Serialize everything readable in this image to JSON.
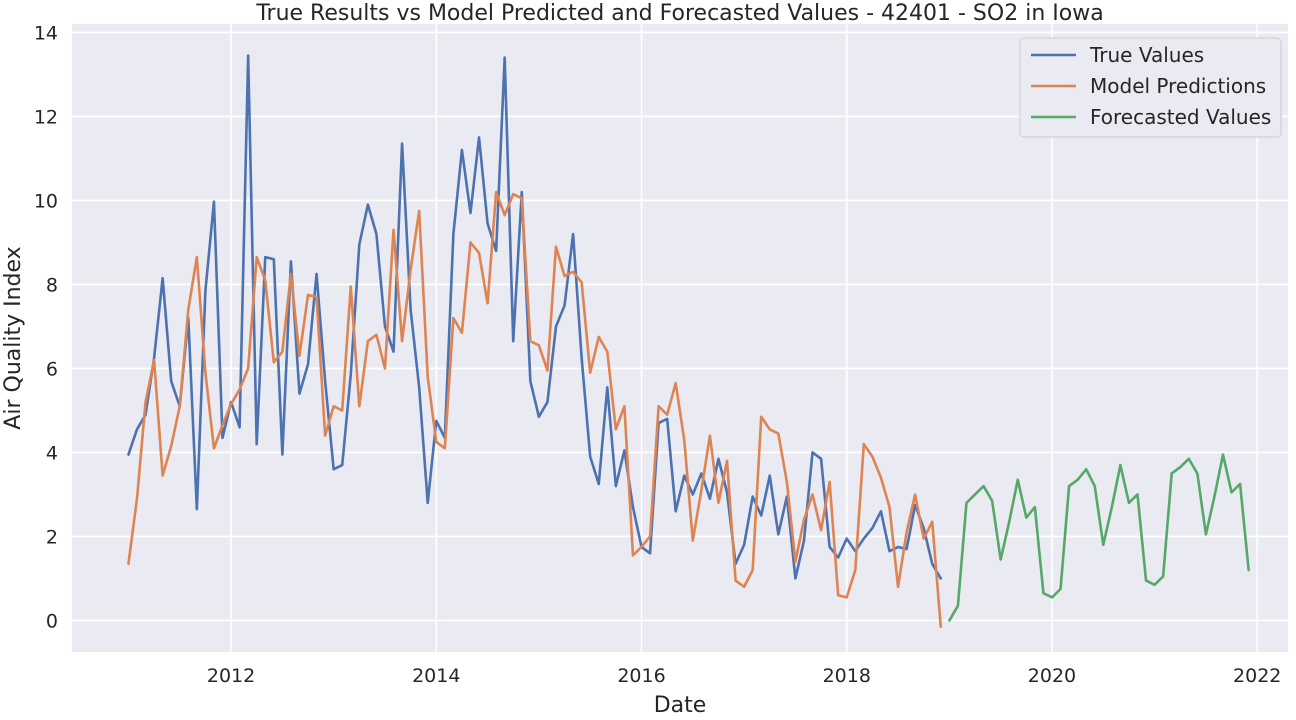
{
  "chart_data": {
    "type": "line",
    "title": "True Results vs Model Predicted and Forecasted Values - 42401 - SO2 in Iowa",
    "xlabel": "Date",
    "ylabel": "Air Quality Index",
    "xlim": [
      2010.45,
      2022.3
    ],
    "ylim": [
      -0.75,
      14.2
    ],
    "x_ticks": [
      2012,
      2014,
      2016,
      2018,
      2020,
      2022
    ],
    "y_ticks": [
      0,
      2,
      4,
      6,
      8,
      10,
      12,
      14
    ],
    "grid": true,
    "legend_position": "top-right",
    "colors": {
      "background": "#EAEAF2",
      "grid": "#FFFFFF"
    },
    "series": [
      {
        "name": "True Values",
        "color": "#4C72B0",
        "x_start": 2011.0,
        "x_step": 0.08333,
        "values": [
          3.95,
          4.55,
          4.9,
          6.25,
          8.15,
          5.7,
          5.1,
          7.2,
          2.65,
          7.85,
          9.97,
          4.35,
          5.2,
          4.6,
          13.45,
          4.2,
          8.65,
          8.6,
          3.95,
          8.55,
          5.4,
          6.1,
          8.25,
          5.7,
          3.6,
          3.7,
          5.85,
          8.95,
          9.9,
          9.2,
          7.0,
          6.4,
          11.35,
          7.4,
          5.55,
          2.8,
          4.75,
          4.35,
          9.2,
          11.2,
          9.7,
          11.5,
          9.45,
          8.8,
          13.4,
          6.65,
          10.2,
          5.7,
          4.85,
          5.2,
          7.0,
          7.5,
          9.2,
          6.25,
          3.9,
          3.25,
          5.55,
          3.2,
          4.05,
          2.7,
          1.75,
          1.6,
          4.7,
          4.8,
          2.6,
          3.45,
          3.0,
          3.5,
          2.9,
          3.85,
          3.05,
          1.35,
          1.8,
          2.95,
          2.5,
          3.45,
          2.05,
          2.95,
          1.0,
          1.9,
          4.0,
          3.85,
          1.75,
          1.5,
          1.95,
          1.65,
          1.95,
          2.2,
          2.6,
          1.65,
          1.75,
          1.7,
          2.75,
          2.2,
          1.35,
          1.0
        ]
      },
      {
        "name": "Model Predictions",
        "color": "#DD8452",
        "x_start": 2011.0,
        "x_step": 0.08333,
        "values": [
          1.35,
          2.9,
          5.2,
          6.2,
          3.45,
          4.15,
          5.1,
          7.4,
          8.65,
          5.9,
          4.1,
          4.65,
          5.15,
          5.5,
          6.0,
          8.65,
          8.1,
          6.15,
          6.4,
          8.25,
          6.3,
          7.75,
          7.7,
          4.4,
          5.1,
          5.0,
          7.95,
          5.1,
          6.65,
          6.8,
          6.0,
          9.3,
          6.65,
          8.35,
          9.75,
          5.8,
          4.25,
          4.1,
          7.2,
          6.85,
          9.0,
          8.75,
          7.55,
          10.2,
          9.65,
          10.15,
          10.05,
          6.65,
          6.55,
          5.95,
          8.9,
          8.2,
          8.3,
          8.05,
          5.9,
          6.75,
          6.4,
          4.55,
          5.1,
          1.55,
          1.75,
          2.0,
          5.1,
          4.9,
          5.65,
          4.3,
          1.9,
          3.1,
          4.4,
          2.8,
          3.8,
          0.95,
          0.8,
          1.2,
          4.85,
          4.55,
          4.45,
          3.3,
          1.4,
          2.4,
          3.0,
          2.15,
          3.3,
          0.6,
          0.55,
          1.2,
          4.2,
          3.9,
          3.4,
          2.7,
          0.8,
          2.1,
          3.0,
          1.95,
          2.35,
          -0.15
        ]
      },
      {
        "name": "Forecasted Values",
        "color": "#55A868",
        "x_start": 2019.0,
        "x_step": 0.08333,
        "values": [
          0.0,
          0.35,
          2.8,
          3.0,
          3.2,
          2.85,
          1.45,
          2.35,
          3.35,
          2.45,
          2.7,
          0.65,
          0.55,
          0.75,
          3.2,
          3.35,
          3.6,
          3.2,
          1.8,
          2.7,
          3.7,
          2.8,
          3.0,
          0.95,
          0.85,
          1.05,
          3.5,
          3.65,
          3.85,
          3.5,
          2.05,
          2.95,
          3.95,
          3.05,
          3.25,
          1.2
        ]
      }
    ]
  }
}
